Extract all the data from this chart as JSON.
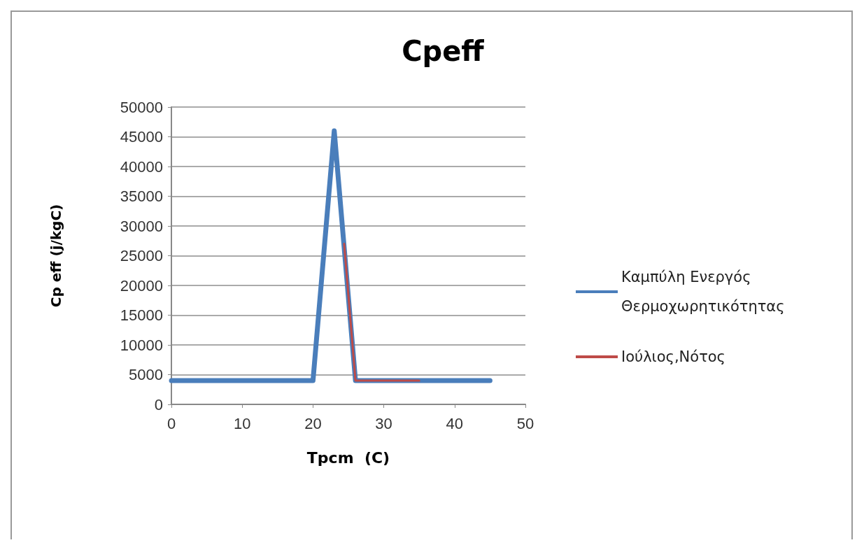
{
  "chart_data": {
    "type": "line",
    "title": "Cpeff",
    "xlabel": "Tpcm  (C)",
    "ylabel": "Cp eff (j/kgC)",
    "xlim": [
      0,
      50
    ],
    "xticks": [
      0,
      10,
      20,
      30,
      40,
      50
    ],
    "ylim": [
      0,
      50000
    ],
    "yticks": [
      0,
      5000,
      10000,
      15000,
      20000,
      25000,
      30000,
      35000,
      40000,
      45000,
      50000
    ],
    "grid": "y",
    "legend": "right",
    "marker": "none",
    "line_style": "solid",
    "series": [
      {
        "name": "Καμπύλη Ενεργός Θερμοχωρητικότητας",
        "color": "#4a7ebb",
        "x": [
          0,
          20,
          23,
          26,
          45
        ],
        "values": [
          4000,
          4000,
          46000,
          4000,
          4000
        ]
      },
      {
        "name": "Ιούλιος,Νότος",
        "color": "#be4b48",
        "x": [
          24.4,
          26,
          35
        ],
        "values": [
          27000,
          4000,
          4000
        ]
      }
    ]
  }
}
